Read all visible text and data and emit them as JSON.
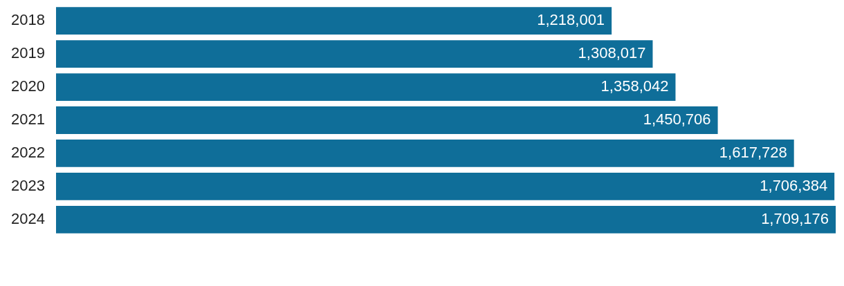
{
  "chart_data": {
    "type": "bar",
    "orientation": "horizontal",
    "categories": [
      "2018",
      "2019",
      "2020",
      "2021",
      "2022",
      "2023",
      "2024"
    ],
    "values": [
      1218001,
      1308017,
      1358042,
      1450706,
      1617728,
      1706384,
      1709176
    ],
    "value_labels": [
      "1,218,001",
      "1,308,017",
      "1,358,042",
      "1,450,706",
      "1,617,728",
      "1,706,384",
      "1,709,176"
    ],
    "color": "#0f6e99",
    "tick_labels": "y"
  }
}
